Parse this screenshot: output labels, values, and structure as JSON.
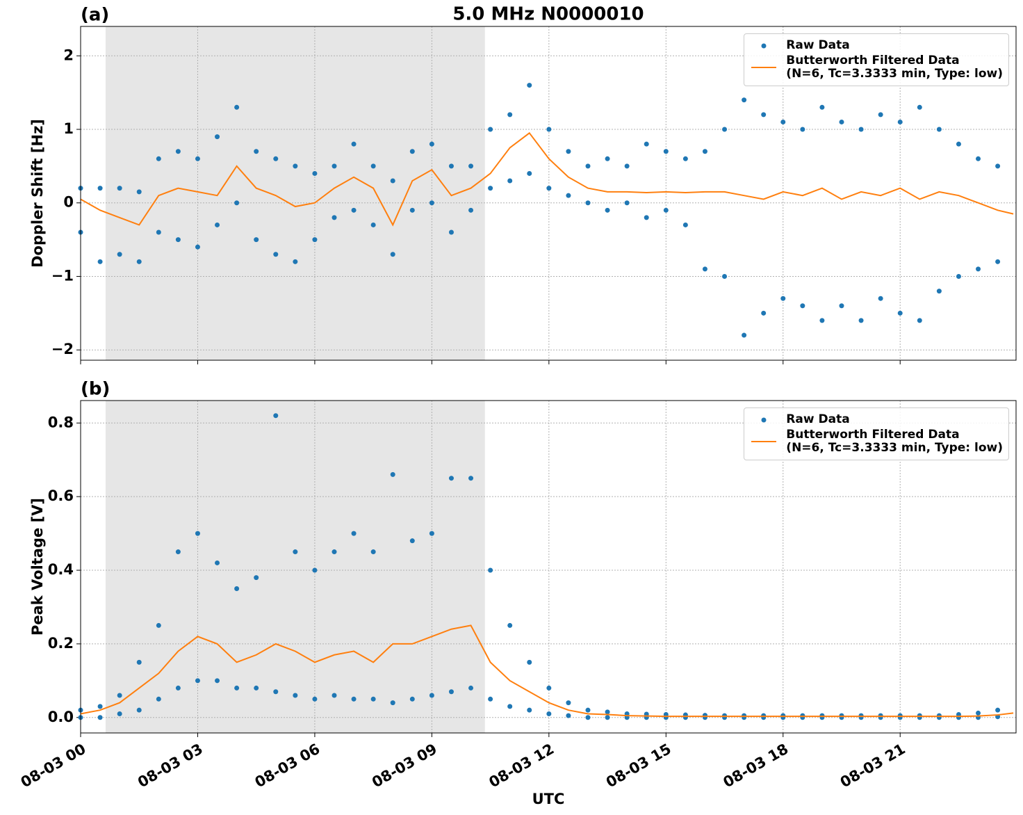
{
  "chart_data": [
    {
      "type": "scatter",
      "panel_label": "(a)",
      "title": "5.0 MHz N0000010",
      "ylabel": "Doppler Shift [Hz]",
      "xlim": [
        0,
        23.97
      ],
      "xticks": [
        0,
        3,
        6,
        9,
        12,
        15,
        18,
        21
      ],
      "ylim": [
        -2.14,
        2.4
      ],
      "yticks": [
        {
          "value": -2,
          "label": "−2"
        },
        {
          "value": -1,
          "label": "−1"
        },
        0,
        1,
        2
      ],
      "grid": true,
      "shade": [
        0.64,
        10.36
      ],
      "legend": "upper right",
      "series": [
        {
          "name": "Raw Data",
          "type": "scatter",
          "color": "#1f77b4",
          "x": [
            0,
            0,
            0.5,
            0.5,
            1,
            1,
            1.5,
            1.5,
            2,
            2,
            2.5,
            2.5,
            3,
            3,
            3.5,
            3.5,
            4,
            4,
            4.5,
            4.5,
            5,
            5,
            5.5,
            5.5,
            6,
            6,
            6.5,
            6.5,
            7,
            7,
            7.5,
            7.5,
            8,
            8,
            8.5,
            8.5,
            9,
            9,
            9.5,
            9.5,
            10,
            10,
            10.5,
            10.5,
            11,
            11,
            11.5,
            11.5,
            12,
            12,
            12.5,
            12.5,
            13,
            13,
            13.5,
            13.5,
            14,
            14,
            14.5,
            14.5,
            15,
            15,
            15.5,
            15.5,
            16,
            16,
            16.5,
            16.5,
            17,
            17,
            17.5,
            17.5,
            18,
            18,
            18.5,
            18.5,
            19,
            19,
            19.5,
            19.5,
            20,
            20,
            20.5,
            20.5,
            21,
            21,
            21.5,
            21.5,
            22,
            22,
            22.5,
            22.5,
            23,
            23,
            23.5,
            23.5
          ],
          "values": [
            0.2,
            -0.4,
            0.2,
            -0.8,
            0.2,
            -0.7,
            0.15,
            -0.8,
            0.6,
            -0.4,
            0.7,
            -0.5,
            0.6,
            -0.6,
            0.9,
            -0.3,
            1.3,
            0.0,
            0.7,
            -0.5,
            0.6,
            -0.7,
            0.5,
            -0.8,
            0.4,
            -0.5,
            0.5,
            -0.2,
            0.8,
            -0.1,
            0.5,
            -0.3,
            0.3,
            -0.7,
            0.7,
            -0.1,
            0.8,
            0.0,
            0.5,
            -0.4,
            0.5,
            -0.1,
            1.0,
            0.2,
            1.2,
            0.3,
            1.6,
            0.4,
            1.0,
            0.2,
            0.7,
            0.1,
            0.5,
            0.0,
            0.6,
            -0.1,
            0.5,
            0.0,
            0.8,
            -0.2,
            0.7,
            -0.1,
            0.6,
            -0.3,
            0.7,
            -0.9,
            1.0,
            -1.0,
            1.4,
            -1.8,
            1.2,
            -1.5,
            1.1,
            -1.3,
            1.0,
            -1.4,
            1.3,
            -1.6,
            1.1,
            -1.4,
            1.0,
            -1.6,
            1.2,
            -1.3,
            1.1,
            -1.5,
            1.3,
            -1.6,
            1.0,
            -1.2,
            0.8,
            -1.0,
            0.6,
            -0.9,
            0.5,
            -0.8
          ]
        },
        {
          "name": "Butterworth Filtered Data\n(N=6, Tc=3.3333 min, Type: low)",
          "type": "line",
          "color": "#ff7f0e",
          "x": [
            0,
            0.5,
            1,
            1.5,
            2,
            2.5,
            3,
            3.5,
            4,
            4.5,
            5,
            5.5,
            6,
            6.5,
            7,
            7.5,
            8,
            8.5,
            9,
            9.5,
            10,
            10.5,
            11,
            11.5,
            12,
            12.5,
            13,
            13.5,
            14,
            14.5,
            15,
            15.5,
            16,
            16.5,
            17,
            17.5,
            18,
            18.5,
            19,
            19.5,
            20,
            20.5,
            21,
            21.5,
            22,
            22.5,
            23,
            23.5,
            23.9
          ],
          "values": [
            0.05,
            -0.1,
            -0.2,
            -0.3,
            0.1,
            0.2,
            0.15,
            0.1,
            0.5,
            0.2,
            0.1,
            -0.05,
            0.0,
            0.2,
            0.35,
            0.2,
            -0.3,
            0.3,
            0.45,
            0.1,
            0.2,
            0.4,
            0.75,
            0.95,
            0.6,
            0.35,
            0.2,
            0.15,
            0.15,
            0.14,
            0.15,
            0.14,
            0.15,
            0.15,
            0.1,
            0.05,
            0.15,
            0.1,
            0.2,
            0.05,
            0.15,
            0.1,
            0.2,
            0.05,
            0.15,
            0.1,
            0.0,
            -0.1,
            -0.15
          ]
        }
      ]
    },
    {
      "type": "scatter",
      "panel_label": "(b)",
      "ylabel": "Peak Voltage [V]",
      "xlabel": "UTC",
      "xlim": [
        0,
        23.97
      ],
      "xticks": [
        {
          "value": 0,
          "label": "08-03 00"
        },
        {
          "value": 3,
          "label": "08-03 03"
        },
        {
          "value": 6,
          "label": "08-03 06"
        },
        {
          "value": 9,
          "label": "08-03 09"
        },
        {
          "value": 12,
          "label": "08-03 12"
        },
        {
          "value": 15,
          "label": "08-03 15"
        },
        {
          "value": 18,
          "label": "08-03 18"
        },
        {
          "value": 21,
          "label": "08-03 21"
        }
      ],
      "ylim": [
        -0.042,
        0.861
      ],
      "yticks": [
        {
          "value": 0,
          "label": "0.0"
        },
        0.2,
        0.4,
        0.6,
        0.8
      ],
      "grid": true,
      "shade": [
        0.64,
        10.36
      ],
      "legend": "upper right",
      "series": [
        {
          "name": "Raw Data",
          "type": "scatter",
          "color": "#1f77b4",
          "x": [
            0,
            0,
            0.5,
            0.5,
            1,
            1,
            1.5,
            1.5,
            2,
            2,
            2.5,
            2.5,
            3,
            3,
            3.5,
            3.5,
            4,
            4,
            4.5,
            4.5,
            5,
            5,
            5.5,
            5.5,
            6,
            6,
            6.5,
            6.5,
            7,
            7,
            7.5,
            7.5,
            8,
            8,
            8.5,
            8.5,
            9,
            9,
            9.5,
            9.5,
            10,
            10,
            10.5,
            10.5,
            11,
            11,
            11.5,
            11.5,
            12,
            12,
            12.5,
            12.5,
            13,
            13,
            13.5,
            13.5,
            14,
            14,
            14.5,
            14.5,
            15,
            15,
            15.5,
            15.5,
            16,
            16,
            16.5,
            16.5,
            17,
            17,
            17.5,
            17.5,
            18,
            18,
            18.5,
            18.5,
            19,
            19,
            19.5,
            19.5,
            20,
            20,
            20.5,
            20.5,
            21,
            21,
            21.5,
            21.5,
            22,
            22,
            22.5,
            22.5,
            23,
            23,
            23.5,
            23.5
          ],
          "values": [
            0.02,
            0,
            0.03,
            0,
            0.06,
            0.01,
            0.15,
            0.02,
            0.25,
            0.05,
            0.45,
            0.08,
            0.5,
            0.1,
            0.42,
            0.1,
            0.35,
            0.08,
            0.38,
            0.08,
            0.82,
            0.07,
            0.45,
            0.06,
            0.4,
            0.05,
            0.45,
            0.06,
            0.5,
            0.05,
            0.45,
            0.05,
            0.66,
            0.04,
            0.48,
            0.05,
            0.5,
            0.06,
            0.65,
            0.07,
            0.65,
            0.08,
            0.4,
            0.05,
            0.25,
            0.03,
            0.15,
            0.02,
            0.08,
            0.01,
            0.04,
            0.005,
            0.02,
            0,
            0.015,
            0,
            0.01,
            0,
            0.009,
            0,
            0.008,
            0,
            0.007,
            0,
            0.006,
            0,
            0.005,
            0,
            0.005,
            0,
            0.005,
            0,
            0.005,
            0,
            0.005,
            0,
            0.005,
            0,
            0.005,
            0,
            0.005,
            0,
            0.005,
            0,
            0.005,
            0,
            0.005,
            0,
            0.005,
            0,
            0.008,
            0,
            0.012,
            0,
            0.02,
            0.002
          ]
        },
        {
          "name": "Butterworth Filtered Data\n(N=6, Tc=3.3333 min, Type: low)",
          "type": "line",
          "color": "#ff7f0e",
          "x": [
            0,
            0.5,
            1,
            1.5,
            2,
            2.5,
            3,
            3.5,
            4,
            4.5,
            5,
            5.5,
            6,
            6.5,
            7,
            7.5,
            8,
            8.5,
            9,
            9.5,
            10,
            10.5,
            11,
            11.5,
            12,
            12.5,
            13,
            13.5,
            14,
            14.5,
            15,
            15.5,
            16,
            16.5,
            17,
            17.5,
            18,
            18.5,
            19,
            19.5,
            20,
            20.5,
            21,
            21.5,
            22,
            22.5,
            23,
            23.5,
            23.9
          ],
          "values": [
            0.01,
            0.02,
            0.04,
            0.08,
            0.12,
            0.18,
            0.22,
            0.2,
            0.15,
            0.17,
            0.2,
            0.18,
            0.15,
            0.17,
            0.18,
            0.15,
            0.2,
            0.2,
            0.22,
            0.24,
            0.25,
            0.15,
            0.1,
            0.07,
            0.04,
            0.02,
            0.01,
            0.008,
            0.005,
            0.004,
            0.003,
            0.003,
            0.003,
            0.003,
            0.003,
            0.003,
            0.003,
            0.003,
            0.003,
            0.003,
            0.003,
            0.003,
            0.003,
            0.003,
            0.003,
            0.003,
            0.004,
            0.007,
            0.012
          ]
        }
      ]
    }
  ]
}
